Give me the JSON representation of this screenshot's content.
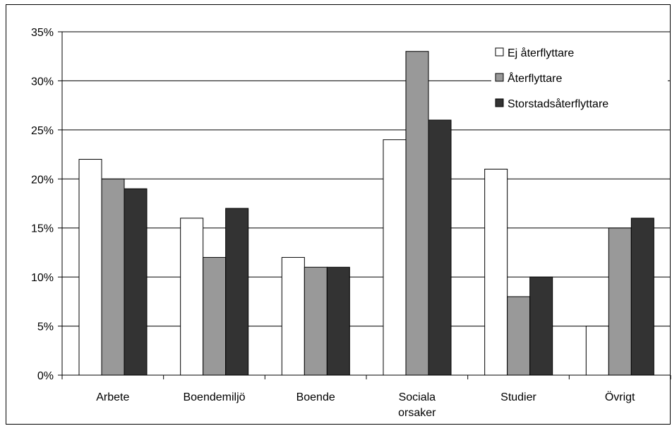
{
  "chart_data": {
    "type": "bar",
    "title": "",
    "xlabel": "",
    "ylabel": "",
    "categories": [
      "Arbete",
      "Boendemiljö",
      "Boende",
      "Sociala orsaker",
      "Studier",
      "Övrigt"
    ],
    "series": [
      {
        "name": "Ej återflyttare",
        "values": [
          22,
          16,
          12,
          24,
          21,
          5
        ],
        "color": "#ffffff"
      },
      {
        "name": "Återflyttare",
        "values": [
          20,
          12,
          11,
          33,
          8,
          15
        ],
        "color": "#999999"
      },
      {
        "name": "Storstadsåterflyttare",
        "values": [
          19,
          17,
          11,
          26,
          10,
          16
        ],
        "color": "#333333"
      }
    ],
    "ylim": [
      0,
      35
    ],
    "y_ticks": [
      "0%",
      "5%",
      "10%",
      "15%",
      "20%",
      "25%",
      "30%",
      "35%"
    ],
    "grid": true,
    "legend_position": "top-right"
  }
}
